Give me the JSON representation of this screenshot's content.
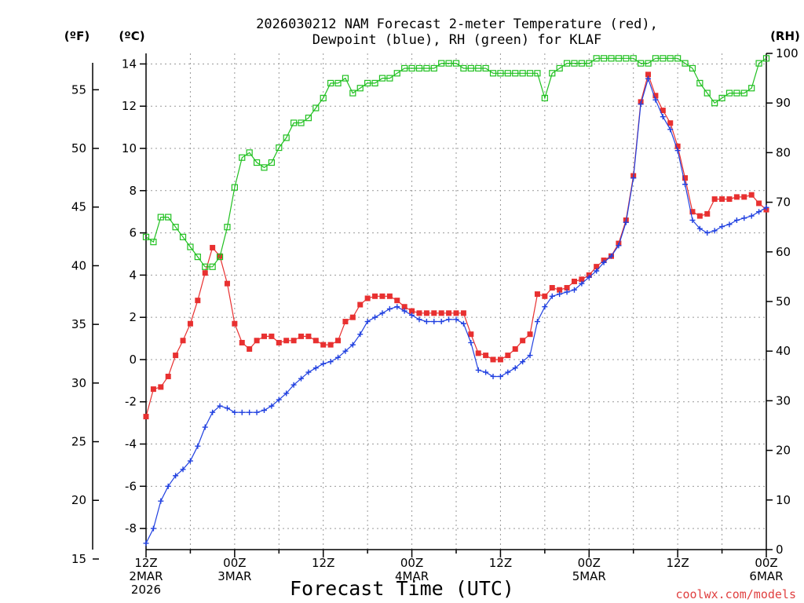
{
  "chart_data": {
    "type": "line",
    "title_line1": "2026030212 NAM Forecast 2-meter Temperature (red),",
    "title_line2": "Dewpoint (blue), RH (green) for KLAF",
    "unit_f": "(ºF)",
    "unit_c": "(ºC)",
    "unit_rh": "(RH)",
    "xlabel": "Forecast Time (UTC)",
    "credit": "coolwx.com/models",
    "x_range_hours": [
      0,
      84
    ],
    "y_c_range": [
      -9,
      14.5
    ],
    "y_rh_range": [
      0,
      100
    ],
    "y_c_ticks": [
      "14",
      "12",
      "10",
      "8",
      "6",
      "4",
      "2",
      "0",
      "-2",
      "-4",
      "-6",
      "-8"
    ],
    "y_f_ticks": [
      "55",
      "50",
      "45",
      "40",
      "35",
      "30",
      "25",
      "20",
      "15"
    ],
    "y_rh_ticks": [
      "100",
      "90",
      "80",
      "70",
      "60",
      "50",
      "40",
      "30",
      "20",
      "10",
      "0"
    ],
    "x_ticks": [
      {
        "hour": 0,
        "line1": "12Z",
        "line2": "2MAR",
        "line3": "2026"
      },
      {
        "hour": 12,
        "line1": "00Z",
        "line2": "3MAR",
        "line3": ""
      },
      {
        "hour": 24,
        "line1": "12Z",
        "line2": "",
        "line3": ""
      },
      {
        "hour": 36,
        "line1": "00Z",
        "line2": "4MAR",
        "line3": ""
      },
      {
        "hour": 48,
        "line1": "12Z",
        "line2": "",
        "line3": ""
      },
      {
        "hour": 60,
        "line1": "00Z",
        "line2": "5MAR",
        "line3": ""
      },
      {
        "hour": 72,
        "line1": "12Z",
        "line2": "",
        "line3": ""
      },
      {
        "hour": 84,
        "line1": "00Z",
        "line2": "6MAR",
        "line3": ""
      }
    ],
    "series": [
      {
        "axis": "C",
        "color": "#e83030",
        "marker": "filled-square",
        "values": [
          -2.7,
          -1.4,
          -1.3,
          -0.8,
          0.2,
          0.9,
          1.7,
          2.8,
          4.1,
          5.3,
          4.9,
          3.6,
          1.7,
          0.8,
          0.5,
          0.9,
          1.1,
          1.1,
          0.8,
          0.9,
          0.9,
          1.1,
          1.1,
          0.9,
          0.7,
          0.7,
          0.9,
          1.8,
          2.0,
          2.6,
          2.9,
          3.0,
          3.0,
          3.0,
          2.8,
          2.5,
          2.3,
          2.2,
          2.2,
          2.2,
          2.2,
          2.2,
          2.2,
          2.2,
          1.2,
          0.3,
          0.2,
          0.0,
          0.0,
          0.2,
          0.5,
          0.9,
          1.2,
          3.1,
          3.0,
          3.4,
          3.3,
          3.4,
          3.7,
          3.8,
          4.0,
          4.4,
          4.7,
          4.9,
          5.5,
          6.6,
          8.7,
          12.2,
          13.5,
          12.5,
          11.8,
          11.2,
          10.1,
          8.6,
          7.0,
          6.8,
          6.9,
          7.6,
          7.6,
          7.6,
          7.7,
          7.7,
          7.8,
          7.4,
          7.1
        ]
      },
      {
        "axis": "C",
        "color": "#2040e0",
        "marker": "plus",
        "values": [
          -8.7,
          -8.0,
          -6.7,
          -6.0,
          -5.5,
          -5.2,
          -4.8,
          -4.1,
          -3.2,
          -2.5,
          -2.2,
          -2.3,
          -2.5,
          -2.5,
          -2.5,
          -2.5,
          -2.4,
          -2.2,
          -1.9,
          -1.6,
          -1.2,
          -0.9,
          -0.6,
          -0.4,
          -0.2,
          -0.1,
          0.1,
          0.4,
          0.7,
          1.2,
          1.8,
          2.0,
          2.2,
          2.4,
          2.5,
          2.3,
          2.1,
          1.9,
          1.8,
          1.8,
          1.8,
          1.9,
          1.9,
          1.7,
          0.8,
          -0.5,
          -0.6,
          -0.8,
          -0.8,
          -0.6,
          -0.4,
          -0.1,
          0.2,
          1.8,
          2.5,
          3.0,
          3.1,
          3.2,
          3.3,
          3.6,
          3.9,
          4.2,
          4.6,
          4.9,
          5.4,
          6.5,
          8.6,
          12.1,
          13.3,
          12.3,
          11.5,
          10.9,
          9.9,
          8.3,
          6.6,
          6.2,
          6.0,
          6.1,
          6.3,
          6.4,
          6.6,
          6.7,
          6.8,
          7.0,
          7.2
        ]
      },
      {
        "axis": "RH",
        "color": "#20c020",
        "marker": "open-square",
        "values": [
          63,
          62,
          67,
          67,
          65,
          63,
          61,
          59,
          57,
          57,
          59,
          65,
          73,
          79,
          80,
          78,
          77,
          78,
          81,
          83,
          86,
          86,
          87,
          89,
          91,
          94,
          94,
          95,
          92,
          93,
          94,
          94,
          95,
          95,
          96,
          97,
          97,
          97,
          97,
          97,
          98,
          98,
          98,
          97,
          97,
          97,
          97,
          96,
          96,
          96,
          96,
          96,
          96,
          96,
          91,
          96,
          97,
          98,
          98,
          98,
          98,
          99,
          99,
          99,
          99,
          99,
          99,
          98,
          98,
          99,
          99,
          99,
          99,
          98,
          97,
          94,
          92,
          90,
          91,
          92,
          92,
          92,
          93,
          98,
          99
        ]
      }
    ]
  }
}
